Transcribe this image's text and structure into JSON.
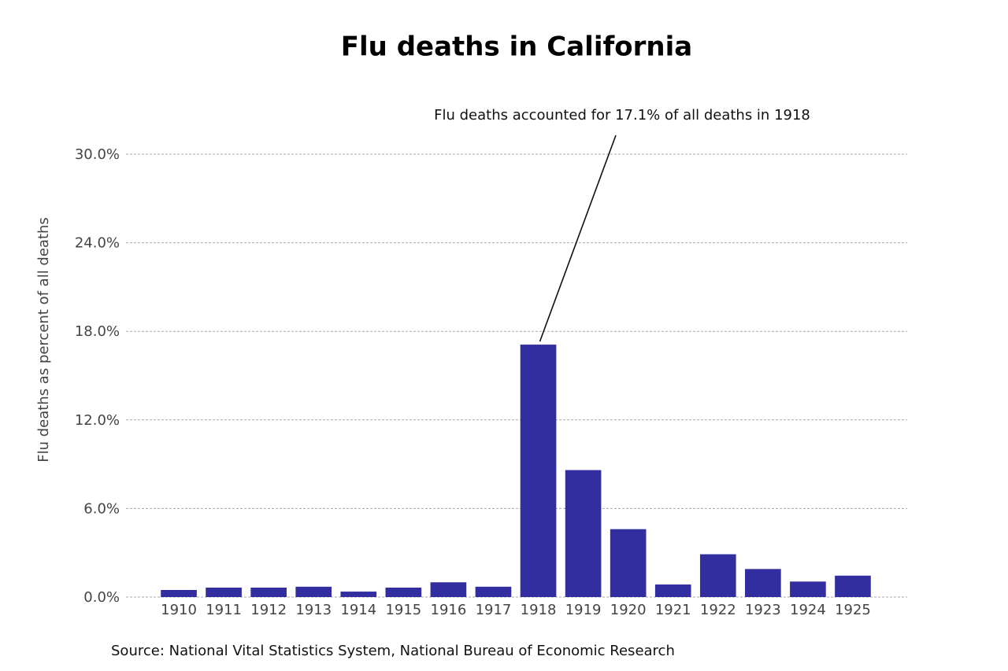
{
  "chart_data": {
    "type": "bar",
    "title": "Flu deaths in California",
    "y_label": "Flu deaths as percent of all deaths",
    "annotation": "Flu deaths accounted for 17.1% of all deaths in 1918",
    "source": "Source: National Vital Statistics System, National Bureau of Economic Research",
    "categories": [
      "1910",
      "1911",
      "1912",
      "1913",
      "1914",
      "1915",
      "1916",
      "1917",
      "1918",
      "1919",
      "1920",
      "1921",
      "1922",
      "1923",
      "1924",
      "1925"
    ],
    "values": [
      0.48,
      0.64,
      0.64,
      0.7,
      0.37,
      0.64,
      1.0,
      0.7,
      17.1,
      8.6,
      4.6,
      0.85,
      2.9,
      1.9,
      1.05,
      1.45
    ],
    "color": "#332ea0",
    "ylim": [
      0,
      30
    ],
    "yticks": [
      {
        "value": 0,
        "label": "0.0%"
      },
      {
        "value": 6,
        "label": "6.0%"
      },
      {
        "value": 12,
        "label": "12.0%"
      },
      {
        "value": 18,
        "label": "18.0%"
      },
      {
        "value": 24,
        "label": "24.0%"
      },
      {
        "value": 30,
        "label": "30.0%"
      }
    ],
    "grid": true
  }
}
